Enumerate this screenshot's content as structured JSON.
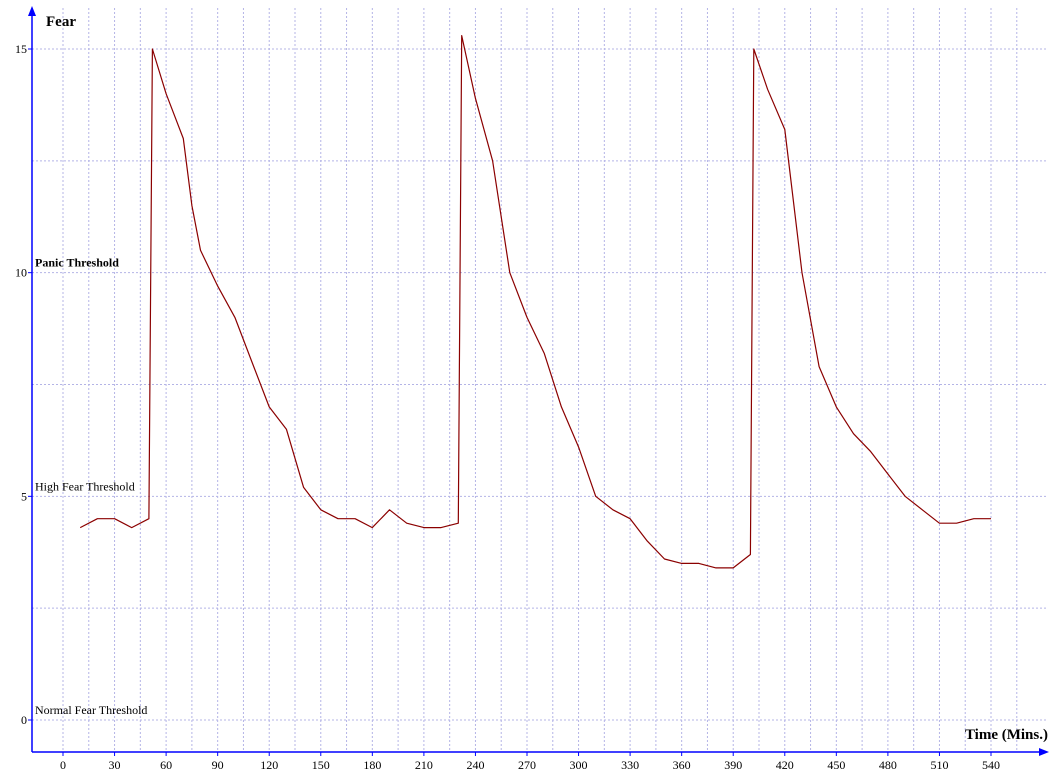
{
  "chart_data": {
    "type": "line",
    "title": "",
    "xlabel": "Time (Mins.)",
    "ylabel": "Fear",
    "xlim": [
      -18,
      575
    ],
    "ylim": [
      -1.4,
      16.6
    ],
    "x_ticks": [
      0,
      30,
      60,
      90,
      120,
      150,
      180,
      210,
      240,
      270,
      300,
      330,
      360,
      390,
      420,
      450,
      480,
      510,
      540
    ],
    "y_ticks": [
      0,
      5,
      10,
      15
    ],
    "grid": true,
    "colors": {
      "axis": "#0000ff",
      "grid": "#b4b4e6",
      "series": "#8b0000",
      "panic_label": "#ff0000",
      "label": "#000000"
    },
    "thresholds": [
      {
        "label": "Normal Fear Threshold",
        "value": 0,
        "color": "#000000",
        "bold": false
      },
      {
        "label": "High Fear Threshold",
        "value": 5,
        "color": "#000000",
        "bold": false
      },
      {
        "label": "Panic Threshold",
        "value": 10,
        "color": "#ff0000",
        "bold": true
      }
    ],
    "series": [
      {
        "x": [
          10,
          20,
          30,
          40,
          50,
          52,
          60,
          70,
          75,
          80,
          90,
          100,
          110,
          120,
          130,
          140,
          150,
          160,
          170,
          180,
          190,
          200,
          210,
          220,
          230,
          232,
          240,
          250,
          260,
          270,
          280,
          290,
          300,
          310,
          320,
          330,
          340,
          350,
          360,
          370,
          380,
          390,
          400,
          402,
          410,
          420,
          430,
          440,
          450,
          460,
          470,
          480,
          490,
          500,
          510,
          520,
          530,
          540
        ],
        "y": [
          4.3,
          4.5,
          4.5,
          4.3,
          4.5,
          15.0,
          14.0,
          13.0,
          11.5,
          10.5,
          9.7,
          9.0,
          8.0,
          7.0,
          6.5,
          5.2,
          4.7,
          4.5,
          4.5,
          4.3,
          4.7,
          4.4,
          4.3,
          4.3,
          4.4,
          15.3,
          13.9,
          12.5,
          10.0,
          9.0,
          8.2,
          7.0,
          6.1,
          5.0,
          4.7,
          4.5,
          4.0,
          3.6,
          3.5,
          3.5,
          3.4,
          3.4,
          3.7,
          15.0,
          14.1,
          13.2,
          10.0,
          7.9,
          7.0,
          6.4,
          6.0,
          5.5,
          5.0,
          4.7,
          4.4,
          4.4,
          4.5,
          4.5
        ]
      }
    ]
  }
}
